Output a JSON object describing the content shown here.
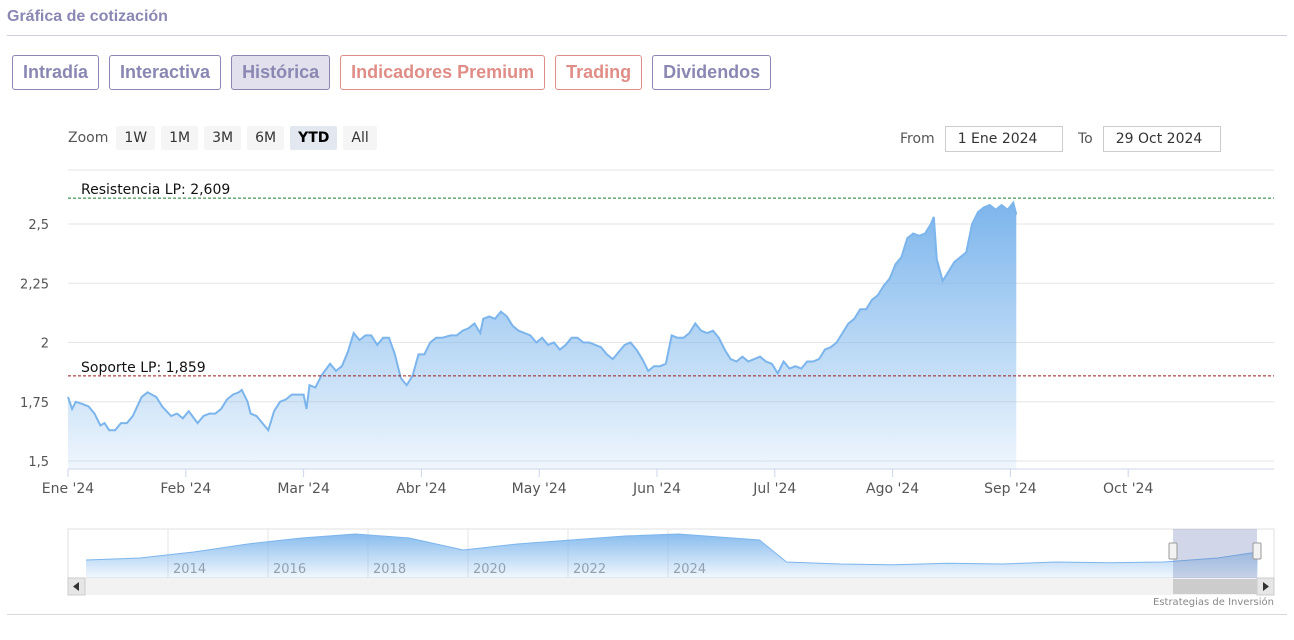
{
  "page_title": "Gráfica de cotización",
  "tabs": [
    {
      "label": "Intradía",
      "kind": "normal"
    },
    {
      "label": "Interactiva",
      "kind": "normal"
    },
    {
      "label": "Histórica",
      "kind": "active"
    },
    {
      "label": "Indicadores Premium",
      "kind": "premium"
    },
    {
      "label": "Trading",
      "kind": "premium"
    },
    {
      "label": "Dividendos",
      "kind": "normal"
    }
  ],
  "zoom": {
    "label": "Zoom",
    "options": [
      "1W",
      "1M",
      "3M",
      "6M",
      "YTD",
      "All"
    ],
    "selected": "YTD"
  },
  "range": {
    "from_label": "From",
    "from_value": "1 Ene 2024",
    "to_label": "To",
    "to_value": "29 Oct 2024"
  },
  "credit": "Estrategias de Inversión",
  "colors": {
    "accent": "#8a87b3",
    "premium": "#e08d87",
    "series": "#7cb5ec",
    "resistance": "#1e7b2e",
    "support": "#9b1b1b"
  },
  "chart_data": {
    "type": "area",
    "title": "",
    "xlabel": "",
    "ylabel": "",
    "ylim": [
      1.5,
      2.6
    ],
    "yticks": [
      1.5,
      1.75,
      2,
      2.25,
      2.5
    ],
    "ytick_labels": [
      "1,5",
      "1,75",
      "2",
      "2,25",
      "2,5"
    ],
    "xticks": [
      {
        "label": "Ene '24",
        "month": 0
      },
      {
        "label": "Feb '24",
        "month": 1
      },
      {
        "label": "Mar '24",
        "month": 2
      },
      {
        "label": "Abr '24",
        "month": 3
      },
      {
        "label": "May '24",
        "month": 4
      },
      {
        "label": "Jun '24",
        "month": 5
      },
      {
        "label": "Jul '24",
        "month": 6
      },
      {
        "label": "Ago '24",
        "month": 7
      },
      {
        "label": "Sep '24",
        "month": 8
      },
      {
        "label": "Oct '24",
        "month": 9
      }
    ],
    "x_unit": "months since Ene '24",
    "series": [
      {
        "points": [
          [
            0,
            1.77
          ],
          [
            0.07,
            1.72
          ],
          [
            0.13,
            1.75
          ],
          [
            0.25,
            1.74
          ],
          [
            0.35,
            1.73
          ],
          [
            0.45,
            1.7
          ],
          [
            0.55,
            1.65
          ],
          [
            0.62,
            1.66
          ],
          [
            0.7,
            1.63
          ],
          [
            0.8,
            1.63
          ],
          [
            0.9,
            1.66
          ],
          [
            1.0,
            1.66
          ],
          [
            1.1,
            1.69
          ],
          [
            1.25,
            1.77
          ],
          [
            1.35,
            1.79
          ],
          [
            1.5,
            1.77
          ],
          [
            1.6,
            1.73
          ],
          [
            1.75,
            1.69
          ],
          [
            1.85,
            1.7
          ],
          [
            1.95,
            1.68
          ],
          [
            2.05,
            1.71
          ],
          [
            2.2,
            1.66
          ],
          [
            2.3,
            1.69
          ],
          [
            2.4,
            1.7
          ],
          [
            2.5,
            1.7
          ],
          [
            2.6,
            1.72
          ],
          [
            2.7,
            1.76
          ],
          [
            2.8,
            1.78
          ],
          [
            2.9,
            1.79
          ],
          [
            2.95,
            1.8
          ],
          [
            3.05,
            1.75
          ],
          [
            3.1,
            1.7
          ],
          [
            3.2,
            1.69
          ],
          [
            3.3,
            1.66
          ],
          [
            3.4,
            1.63
          ],
          [
            3.5,
            1.71
          ],
          [
            3.6,
            1.75
          ],
          [
            3.7,
            1.76
          ],
          [
            3.8,
            1.78
          ],
          [
            3.9,
            1.78
          ],
          [
            4.0,
            1.78
          ],
          [
            4.05,
            1.72
          ],
          [
            4.1,
            1.82
          ],
          [
            4.2,
            1.81
          ],
          [
            4.3,
            1.86
          ],
          [
            4.45,
            1.91
          ],
          [
            4.55,
            1.88
          ],
          [
            4.65,
            1.9
          ],
          [
            4.75,
            1.96
          ],
          [
            4.85,
            2.04
          ],
          [
            4.95,
            2.01
          ],
          [
            5.05,
            2.03
          ],
          [
            5.15,
            2.03
          ],
          [
            5.25,
            1.99
          ],
          [
            5.35,
            2.02
          ],
          [
            5.45,
            2.02
          ],
          [
            5.55,
            1.95
          ],
          [
            5.65,
            1.85
          ],
          [
            5.75,
            1.82
          ],
          [
            5.85,
            1.86
          ],
          [
            5.95,
            1.95
          ],
          [
            6.05,
            1.95
          ],
          [
            6.15,
            2.0
          ],
          [
            6.25,
            2.02
          ],
          [
            6.35,
            2.02
          ],
          [
            6.5,
            2.03
          ],
          [
            6.6,
            2.03
          ],
          [
            6.7,
            2.05
          ],
          [
            6.8,
            2.06
          ],
          [
            6.9,
            2.08
          ],
          [
            7.0,
            2.04
          ],
          [
            7.05,
            2.1
          ],
          [
            7.15,
            2.11
          ],
          [
            7.25,
            2.1
          ],
          [
            7.35,
            2.13
          ],
          [
            7.45,
            2.11
          ],
          [
            7.55,
            2.07
          ],
          [
            7.65,
            2.05
          ],
          [
            7.75,
            2.04
          ],
          [
            7.85,
            2.03
          ],
          [
            7.95,
            2.0
          ],
          [
            8.05,
            2.02
          ],
          [
            8.15,
            1.99
          ],
          [
            8.25,
            2.0
          ],
          [
            8.35,
            1.97
          ],
          [
            8.45,
            1.99
          ],
          [
            8.55,
            2.02
          ],
          [
            8.65,
            2.02
          ],
          [
            8.75,
            2.0
          ],
          [
            8.85,
            2.0
          ],
          [
            8.95,
            1.99
          ],
          [
            9.05,
            1.98
          ],
          [
            9.15,
            1.95
          ],
          [
            9.25,
            1.93
          ],
          [
            9.35,
            1.96
          ],
          [
            9.45,
            1.99
          ],
          [
            9.55,
            2.0
          ],
          [
            9.65,
            1.97
          ],
          [
            9.75,
            1.93
          ],
          [
            9.85,
            1.88
          ],
          [
            9.95,
            1.9
          ],
          [
            10.05,
            1.9
          ],
          [
            10.15,
            1.91
          ],
          [
            10.25,
            2.03
          ],
          [
            10.35,
            2.02
          ],
          [
            10.45,
            2.02
          ],
          [
            10.55,
            2.04
          ],
          [
            10.65,
            2.08
          ],
          [
            10.75,
            2.05
          ],
          [
            10.85,
            2.04
          ],
          [
            10.95,
            2.05
          ],
          [
            11.05,
            2.02
          ],
          [
            11.15,
            1.97
          ],
          [
            11.25,
            1.93
          ],
          [
            11.35,
            1.92
          ],
          [
            11.45,
            1.94
          ],
          [
            11.55,
            1.92
          ],
          [
            11.65,
            1.93
          ],
          [
            11.75,
            1.94
          ],
          [
            11.85,
            1.92
          ],
          [
            11.95,
            1.91
          ],
          [
            12.05,
            1.87
          ],
          [
            12.15,
            1.92
          ],
          [
            12.25,
            1.89
          ],
          [
            12.35,
            1.9
          ],
          [
            12.45,
            1.89
          ],
          [
            12.55,
            1.92
          ],
          [
            12.65,
            1.92
          ],
          [
            12.75,
            1.93
          ],
          [
            12.85,
            1.97
          ],
          [
            12.95,
            1.98
          ],
          [
            13.05,
            2.0
          ],
          [
            13.15,
            2.04
          ],
          [
            13.25,
            2.08
          ],
          [
            13.35,
            2.1
          ],
          [
            13.45,
            2.14
          ],
          [
            13.55,
            2.14
          ],
          [
            13.65,
            2.18
          ],
          [
            13.75,
            2.2
          ],
          [
            13.85,
            2.24
          ],
          [
            13.95,
            2.27
          ],
          [
            14.05,
            2.33
          ],
          [
            14.15,
            2.36
          ],
          [
            14.25,
            2.44
          ],
          [
            14.35,
            2.46
          ],
          [
            14.45,
            2.45
          ],
          [
            14.55,
            2.46
          ],
          [
            14.65,
            2.5
          ],
          [
            14.7,
            2.53
          ],
          [
            14.75,
            2.35
          ],
          [
            14.85,
            2.26
          ],
          [
            14.95,
            2.3
          ],
          [
            15.05,
            2.34
          ],
          [
            15.15,
            2.36
          ],
          [
            15.25,
            2.38
          ],
          [
            15.35,
            2.5
          ],
          [
            15.45,
            2.55
          ],
          [
            15.55,
            2.57
          ],
          [
            15.65,
            2.58
          ],
          [
            15.75,
            2.56
          ],
          [
            15.85,
            2.58
          ],
          [
            15.95,
            2.56
          ],
          [
            16.05,
            2.59
          ],
          [
            16.1,
            2.54
          ]
        ]
      }
    ],
    "annotations": [
      {
        "label": "Resistencia LP: 2,609",
        "value": 2.609,
        "line": "resistance"
      },
      {
        "label": "Soporte LP: 1,859",
        "value": 1.859,
        "line": "support"
      }
    ],
    "navigator": {
      "year_labels": [
        "2014",
        "2016",
        "2018",
        "2020",
        "2022",
        "2024"
      ],
      "points": [
        [
          0,
          0.3
        ],
        [
          4,
          0.35
        ],
        [
          8,
          0.5
        ],
        [
          12,
          0.7
        ],
        [
          16,
          0.85
        ],
        [
          20,
          0.95
        ],
        [
          24,
          0.85
        ],
        [
          28,
          0.55
        ],
        [
          32,
          0.7
        ],
        [
          36,
          0.8
        ],
        [
          40,
          0.9
        ],
        [
          44,
          0.95
        ],
        [
          48,
          0.85
        ],
        [
          50,
          0.8
        ],
        [
          52,
          0.25
        ],
        [
          56,
          0.2
        ],
        [
          60,
          0.18
        ],
        [
          64,
          0.22
        ],
        [
          68,
          0.2
        ],
        [
          72,
          0.25
        ],
        [
          76,
          0.23
        ],
        [
          80,
          0.25
        ],
        [
          84,
          0.35
        ],
        [
          87,
          0.5
        ]
      ]
    }
  }
}
